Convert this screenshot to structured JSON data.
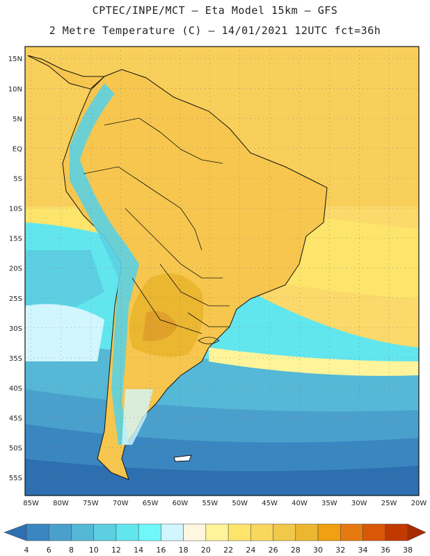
{
  "header": {
    "line1": "CPTEC/INPE/MCT –  Eta Model 15km – GFS",
    "line2": "2 Metre Temperature (C) – 14/01/2021 12UTC fct=36h"
  },
  "map": {
    "lat_labels": [
      "15N",
      "10N",
      "5N",
      "EQ",
      "5S",
      "10S",
      "15S",
      "20S",
      "25S",
      "30S",
      "35S",
      "40S",
      "45S",
      "50S",
      "55S"
    ],
    "lon_labels": [
      "85W",
      "80W",
      "75W",
      "70W",
      "65W",
      "60W",
      "55W",
      "50W",
      "45W",
      "40W",
      "35W",
      "30W",
      "25W",
      "20W"
    ],
    "lat_range": [
      17,
      -58
    ],
    "lon_range": [
      -86,
      -20
    ],
    "grid": "dotted"
  },
  "colorbar": {
    "values": [
      "4",
      "6",
      "8",
      "10",
      "12",
      "14",
      "16",
      "18",
      "20",
      "22",
      "24",
      "26",
      "28",
      "30",
      "32",
      "34",
      "36",
      "38"
    ],
    "colors": [
      "#2d6fb0",
      "#3a86c0",
      "#4aa0cc",
      "#55b8d6",
      "#5cd0e2",
      "#62e6ee",
      "#6ef8fb",
      "#d2f6fe",
      "#fff6e0",
      "#fff49a",
      "#fde46a",
      "#f9d860",
      "#f1c84a",
      "#ebb630",
      "#f0a010",
      "#e67a10",
      "#d85808",
      "#c03a00",
      "#a82a00"
    ]
  }
}
